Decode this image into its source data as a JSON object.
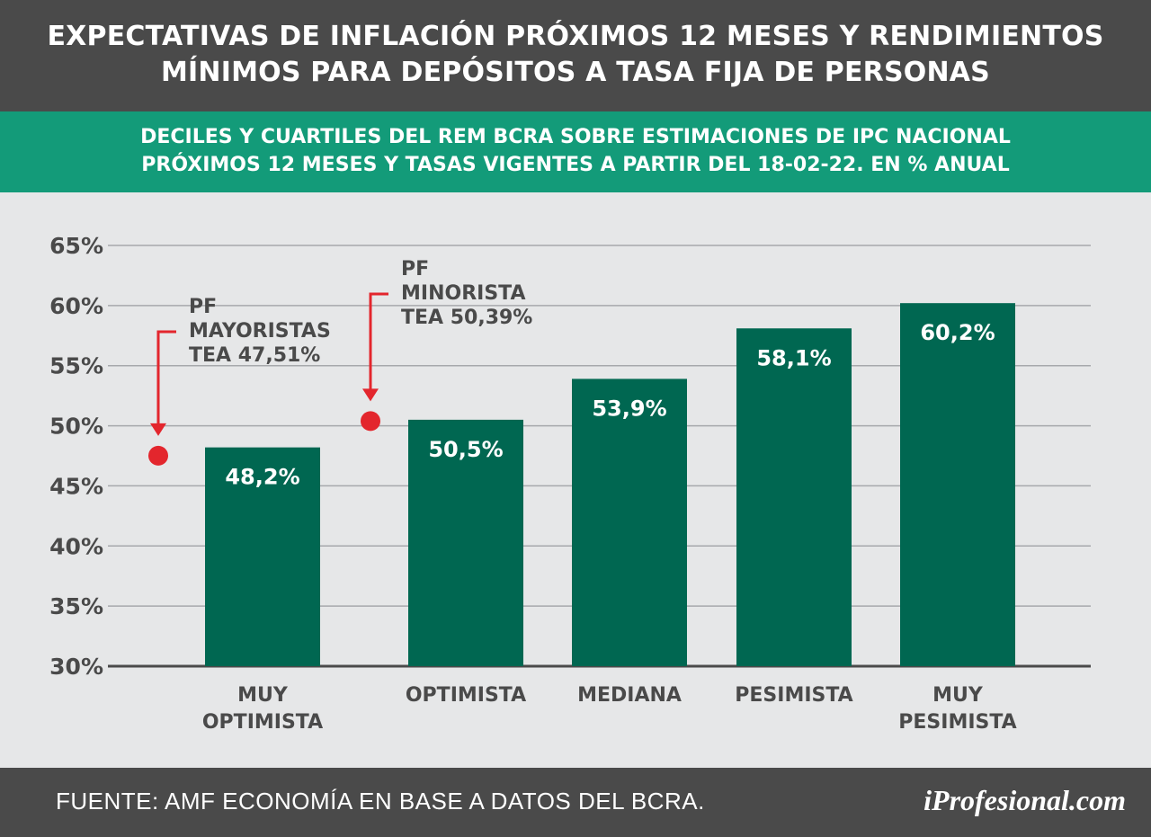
{
  "header": {
    "title_line1": "EXPECTATIVAS DE INFLACIÓN PRÓXIMOS 12 MESES Y RENDIMIENTOS",
    "title_line2": "MÍNIMOS PARA DEPÓSITOS A TASA FIJA DE PERSONAS"
  },
  "subheader": {
    "line1": "DECILES Y CUARTILES DEL REM BCRA SOBRE ESTIMACIONES DE IPC NACIONAL",
    "line2": "PRÓXIMOS 12 MESES Y TASAS VIGENTES A PARTIR DEL 18-02-22. EN % ANUAL"
  },
  "footer": {
    "source": "FUENTE: AMF ECONOMÍA EN BASE A DATOS DEL BCRA.",
    "brand": "iProfesional.com"
  },
  "colors": {
    "bar": "#006751",
    "marker": "#e3262d",
    "header_bg": "#4a4a4a",
    "subheader_bg": "#139b79",
    "plot_bg": "#e6e7e8"
  },
  "chart_data": {
    "type": "bar",
    "categories": [
      [
        "MUY",
        "OPTIMISTA"
      ],
      [
        "OPTIMISTA"
      ],
      [
        "MEDIANA"
      ],
      [
        "PESIMISTA"
      ],
      [
        "MUY",
        "PESIMISTA"
      ]
    ],
    "values": [
      48.2,
      50.5,
      53.9,
      58.1,
      60.2
    ],
    "value_labels": [
      "48,2%",
      "50,5%",
      "53,9%",
      "58,1%",
      "60,2%"
    ],
    "ylim": [
      30,
      65
    ],
    "yticks": [
      30,
      35,
      40,
      45,
      50,
      55,
      60,
      65
    ],
    "ytick_labels": [
      "30%",
      "35%",
      "40%",
      "45%",
      "50%",
      "55%",
      "60%",
      "65%"
    ],
    "grid": true,
    "annotations": [
      {
        "value": 47.51,
        "lines": [
          "PF",
          "MAYORISTAS",
          "TEA 47,51%"
        ]
      },
      {
        "value": 50.39,
        "lines": [
          "PF",
          "MINORISTA",
          "TEA 50,39%"
        ]
      }
    ]
  }
}
